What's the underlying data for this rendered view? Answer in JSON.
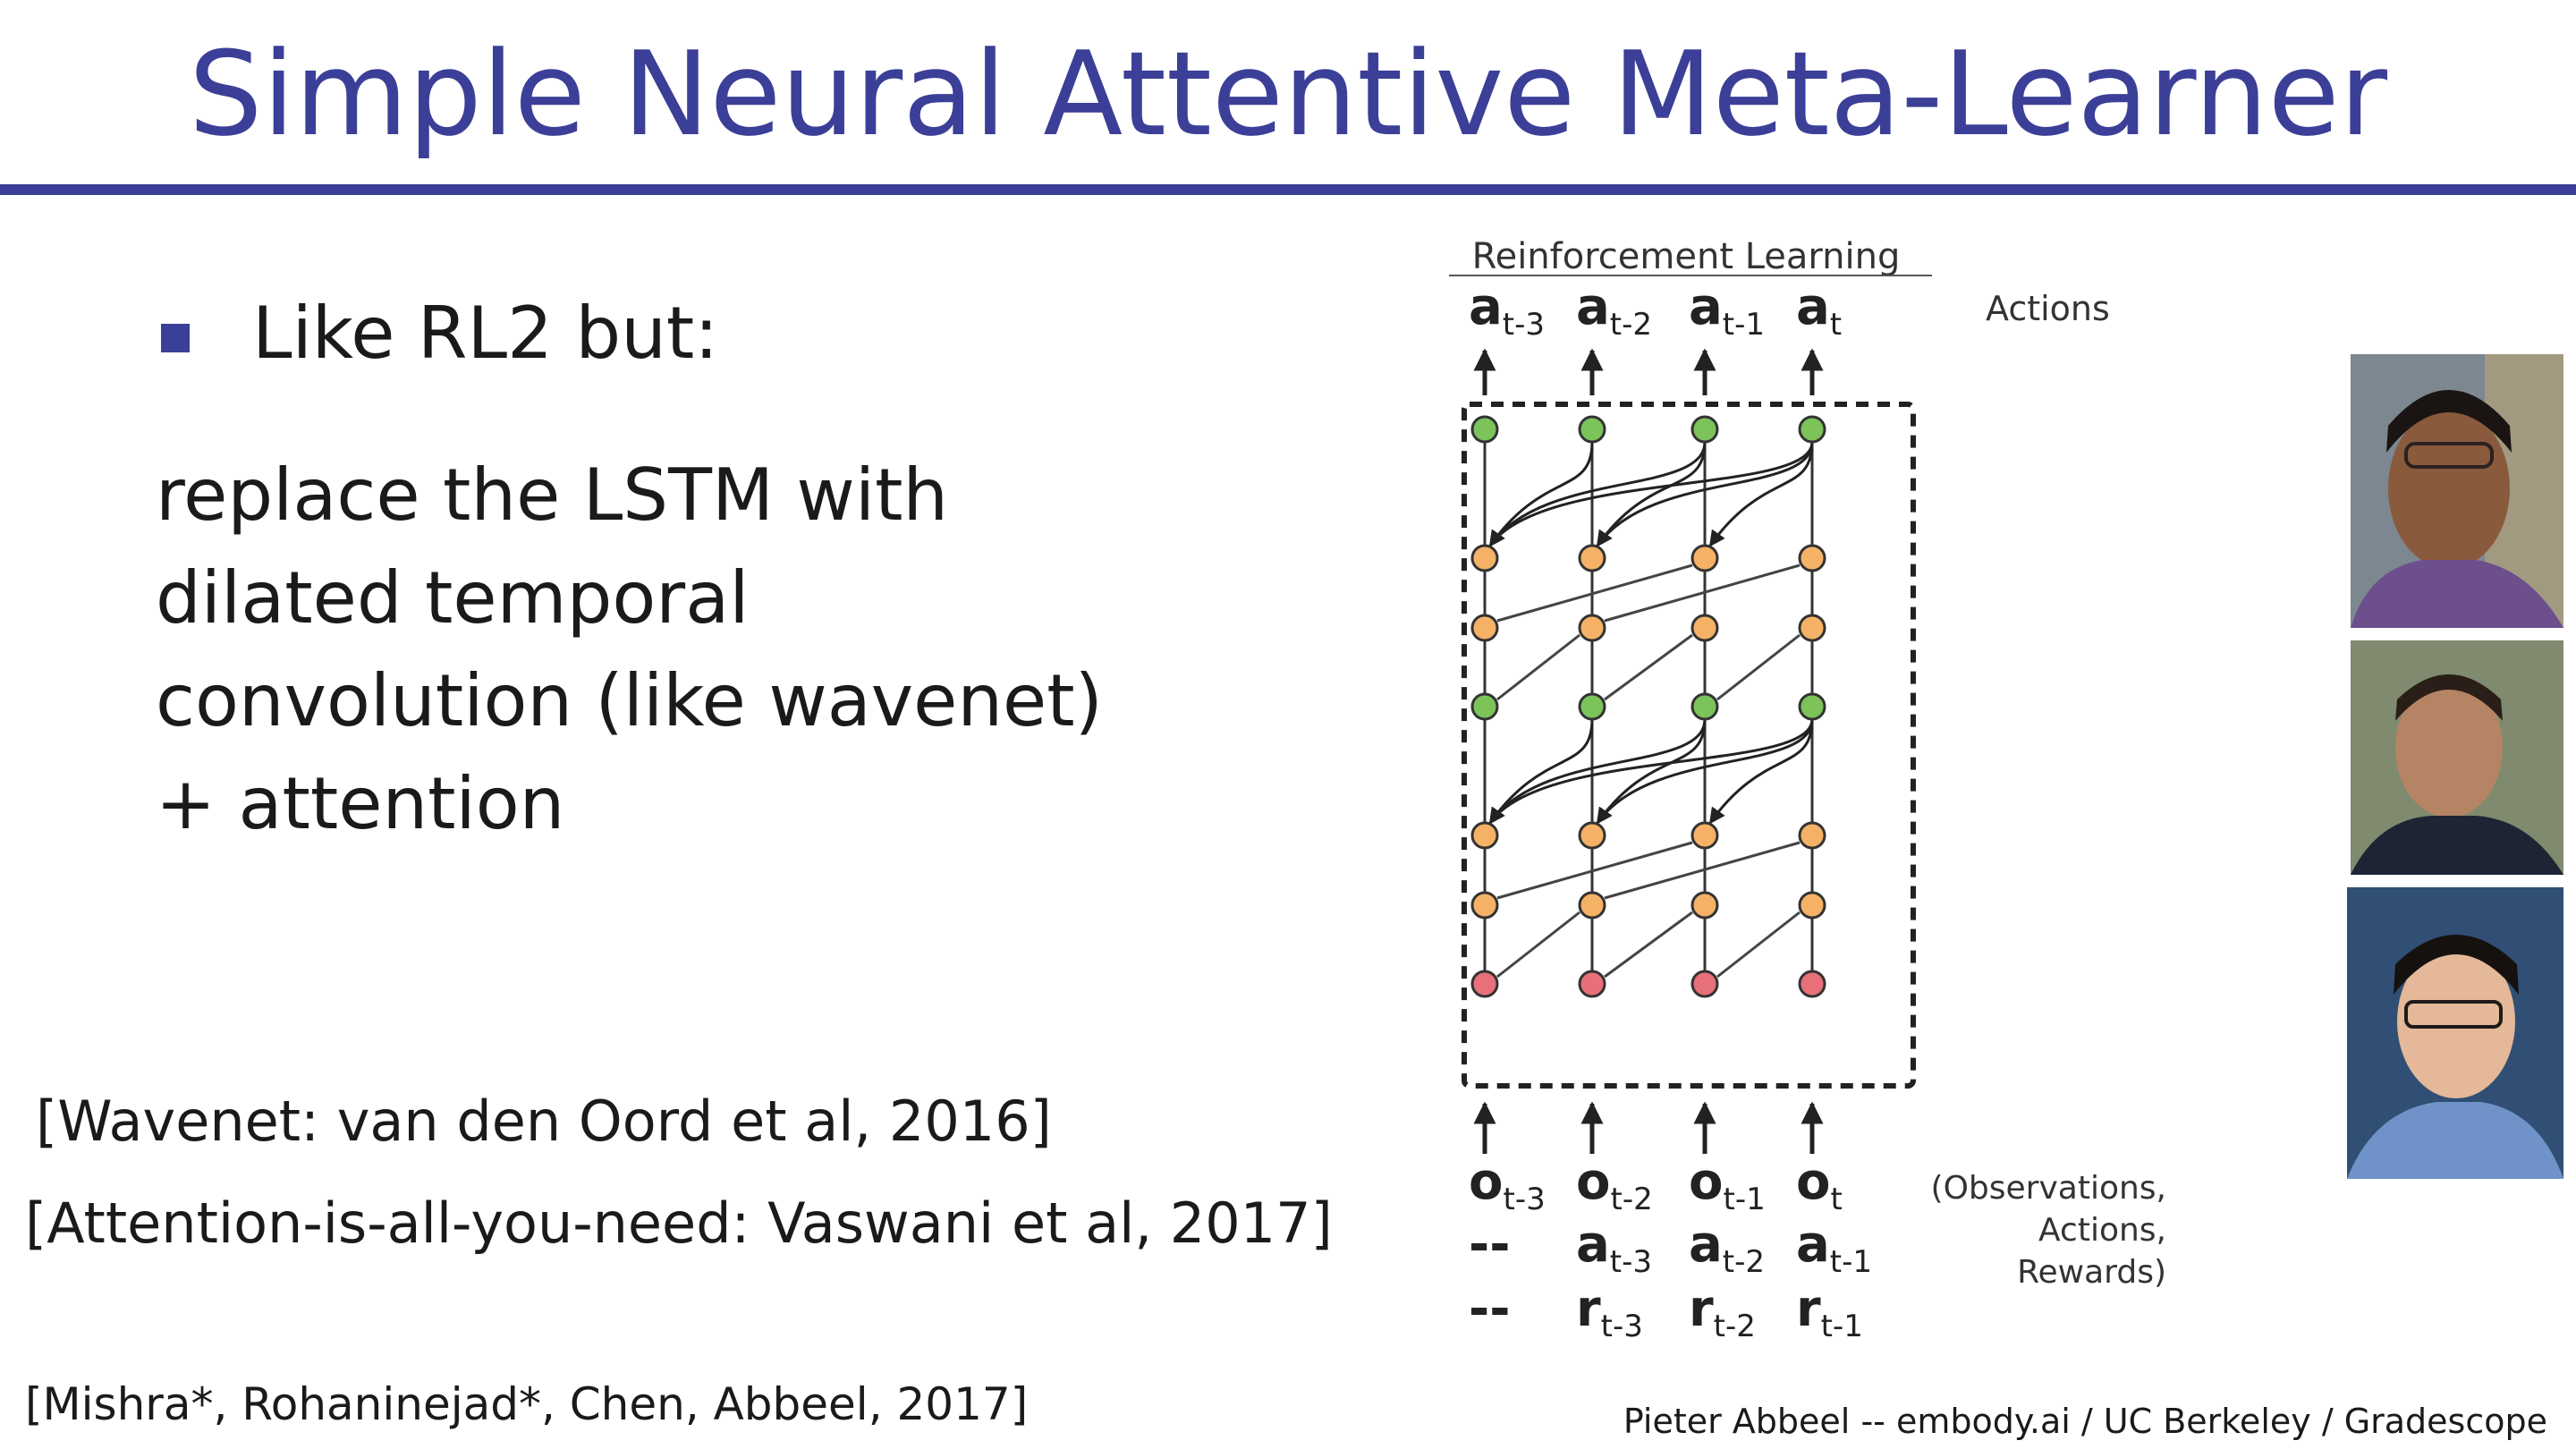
{
  "slide": {
    "title": "Simple Neural Attentive Meta-Learner",
    "bullet": "Like RL2 but:",
    "body_lines": [
      "replace the LSTM with",
      "dilated temporal",
      "convolution (like wavenet)",
      "+ attention"
    ],
    "citations": [
      "[Wavenet: van den Oord et al, 2016]",
      "[Attention-is-all-you-need: Vaswani et al, 2017]",
      "[Mishra*, Rohaninejad*, Chen, Abbeel, 2017]"
    ],
    "footer": "Pieter Abbeel -- embody.ai / UC Berkeley / Gradescope"
  },
  "diagram": {
    "heading": "Reinforcement Learning",
    "actions_label": "Actions",
    "top_labels": [
      {
        "base": "a",
        "sub": "t-3"
      },
      {
        "base": "a",
        "sub": "t-2"
      },
      {
        "base": "a",
        "sub": "t-1"
      },
      {
        "base": "a",
        "sub": "t"
      }
    ],
    "obs_labels": [
      {
        "base": "o",
        "sub": "t-3"
      },
      {
        "base": "o",
        "sub": "t-2"
      },
      {
        "base": "o",
        "sub": "t-1"
      },
      {
        "base": "o",
        "sub": "t"
      }
    ],
    "act_labels": [
      {
        "base": "--",
        "sub": ""
      },
      {
        "base": "a",
        "sub": "t-3"
      },
      {
        "base": "a",
        "sub": "t-2"
      },
      {
        "base": "a",
        "sub": "t-1"
      }
    ],
    "rew_labels": [
      {
        "base": "--",
        "sub": ""
      },
      {
        "base": "r",
        "sub": "t-3"
      },
      {
        "base": "r",
        "sub": "t-2"
      },
      {
        "base": "r",
        "sub": "t-1"
      }
    ],
    "input_desc": [
      "(Observations,",
      "Actions,",
      "Rewards)"
    ],
    "node_colors": {
      "attention": "#7cc35a",
      "conv": "#f5b267",
      "input": "#e8707a",
      "stroke": "#333333"
    }
  },
  "photos": [
    "person-photo",
    "person-photo",
    "person-photo"
  ]
}
